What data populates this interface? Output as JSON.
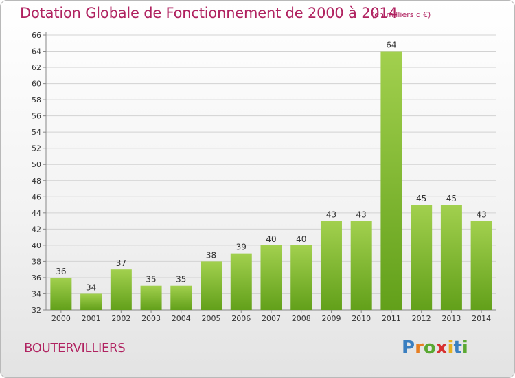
{
  "title": "Dotation Globale de Fonctionnement de 2000 à 2014",
  "subtitle": "(en milliers d'€)",
  "commune": "BOUTERVILLIERS",
  "logo": {
    "letters": [
      "P",
      "r",
      "o",
      "x",
      "i",
      "t",
      "i"
    ],
    "colors": [
      "#3a7fc0",
      "#e67e22",
      "#5aa832",
      "#d83030",
      "#e6b020",
      "#3a7fc0",
      "#5aa832"
    ]
  },
  "colors": {
    "title": "#b02260",
    "bar_light": "#a2d04e",
    "bar_dark": "#62a01a",
    "grid": "#d2d2d2",
    "text": "#333333"
  },
  "chart_data": {
    "type": "bar",
    "categories": [
      "2000",
      "2001",
      "2002",
      "2003",
      "2004",
      "2005",
      "2006",
      "2007",
      "2008",
      "2009",
      "2010",
      "2011",
      "2012",
      "2013",
      "2014"
    ],
    "values": [
      36,
      34,
      37,
      35,
      35,
      38,
      39,
      40,
      40,
      43,
      43,
      64,
      45,
      45,
      43
    ],
    "ylim": [
      32,
      66
    ],
    "yticks": [
      32,
      34,
      36,
      38,
      40,
      42,
      44,
      46,
      48,
      50,
      52,
      54,
      56,
      58,
      60,
      62,
      64,
      66
    ],
    "grid": true,
    "legend": "none",
    "data_labels": true
  }
}
